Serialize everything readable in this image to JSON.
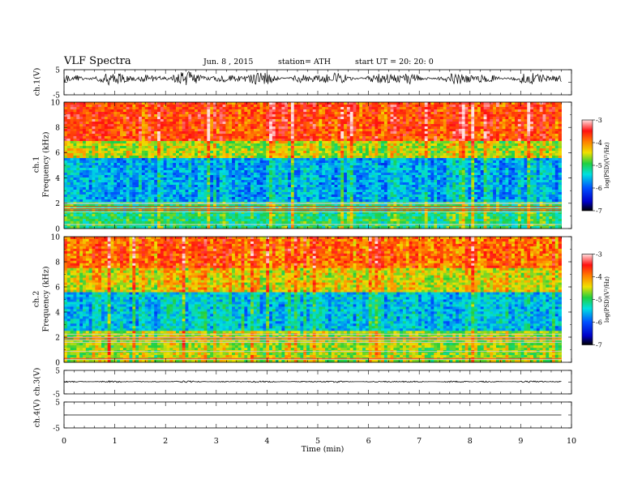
{
  "header": {
    "title": "VLF  Spectra",
    "date": "Jun.  8  ,  2015",
    "station": "station= ATH",
    "start": "start  UT  =   20: 20: 0"
  },
  "panel_labels": {
    "ch1_wave": "ch.1(V)",
    "ch1_spec_channel": "ch.1",
    "ch1_spec_freq": "Frequency  (kHz)",
    "ch2_spec_channel": "ch.2",
    "ch2_spec_freq": "Frequency  (kHz)",
    "ch3_wave": "ch.3(V)",
    "ch4_wave": "ch.4(V)"
  },
  "colors": {
    "spectro_low": "#0000c8",
    "spectro_mid_cyan": "#00e0e0",
    "spectro_green": "#20d040",
    "spectro_yellow": "#f0e000",
    "spectro_high": "#ff2000",
    "waveform": "#000000"
  },
  "chart_data": [
    {
      "type": "line",
      "panel": "ch.1 waveform",
      "ylabel": "ch.1(V)",
      "ylim": [
        -5,
        5
      ],
      "yticks": [
        "5",
        "-5"
      ],
      "xlim": [
        0,
        10
      ],
      "x_extent_data": 9.8,
      "series": [
        {
          "mean": 1.5,
          "amplitude_range": [
            0.2,
            2.8
          ],
          "note_values": "noisy broadband signal"
        }
      ]
    },
    {
      "type": "heatmap",
      "panel": "ch.1 spectrogram",
      "ylabel": "Frequency  (kHz)",
      "ylim": [
        0,
        10
      ],
      "yticks": [
        "0",
        "2",
        "4",
        "6",
        "8",
        "10"
      ],
      "xlim": [
        0,
        10
      ],
      "x_extent_data": 9.8,
      "colorbar": {
        "label": "log(PSD)(V²/Hz)",
        "range": [
          -7,
          -3
        ],
        "ticks": [
          "-3",
          "-4",
          "-5",
          "-6",
          "-7"
        ]
      },
      "bands": [
        {
          "from_khz": 0,
          "to_khz": 2.2,
          "log_psd": -5.0
        },
        {
          "from_khz": 2.2,
          "to_khz": 5.5,
          "log_psd": -5.6
        },
        {
          "from_khz": 5.5,
          "to_khz": 7,
          "log_psd": -4.5
        },
        {
          "from_khz": 7,
          "to_khz": 10,
          "log_psd": -3.7
        }
      ]
    },
    {
      "type": "heatmap",
      "panel": "ch.2 spectrogram",
      "ylabel": "Frequency  (kHz)",
      "ylim": [
        0,
        10
      ],
      "yticks": [
        "0",
        "2",
        "4",
        "6",
        "8",
        "10"
      ],
      "xlim": [
        0,
        10
      ],
      "x_extent_data": 9.8,
      "colorbar": {
        "label": "log(PSD)(V²/Hz)",
        "range": [
          -7,
          -3
        ],
        "ticks": [
          "-3",
          "-4",
          "-5",
          "-6",
          "-7"
        ]
      },
      "bands": [
        {
          "from_khz": 0,
          "to_khz": 2.5,
          "log_psd": -4.6
        },
        {
          "from_khz": 2.5,
          "to_khz": 5.5,
          "log_psd": -5.5
        },
        {
          "from_khz": 5.5,
          "to_khz": 7.5,
          "log_psd": -4.4
        },
        {
          "from_khz": 7.5,
          "to_khz": 10,
          "log_psd": -3.9
        }
      ]
    },
    {
      "type": "line",
      "panel": "ch.3 waveform",
      "ylabel": "ch.3(V)",
      "ylim": [
        -5,
        5
      ],
      "yticks": [
        "5",
        "-5"
      ],
      "xlim": [
        0,
        10
      ],
      "x_extent_data": 9.8,
      "series": [
        {
          "mean": 0.2,
          "amplitude_range": [
            0,
            0.4
          ],
          "note_values": "near-flat trace"
        }
      ]
    },
    {
      "type": "line",
      "panel": "ch.4 waveform",
      "ylabel": "ch.4(V)",
      "ylim": [
        -5,
        5
      ],
      "yticks": [
        "5",
        "-5"
      ],
      "xlim": [
        0,
        10
      ],
      "x_extent_data": 9.8,
      "series": [
        {
          "mean": 0,
          "amplitude_range": [
            0,
            0
          ],
          "note_values": "flat trace"
        }
      ]
    },
    {
      "type": "axis",
      "panel": "time axis",
      "xlabel": "Time  (min)",
      "xlim": [
        0,
        10
      ],
      "xticks": [
        "0",
        "1",
        "2",
        "3",
        "4",
        "5",
        "6",
        "7",
        "8",
        "9",
        "10"
      ]
    }
  ]
}
